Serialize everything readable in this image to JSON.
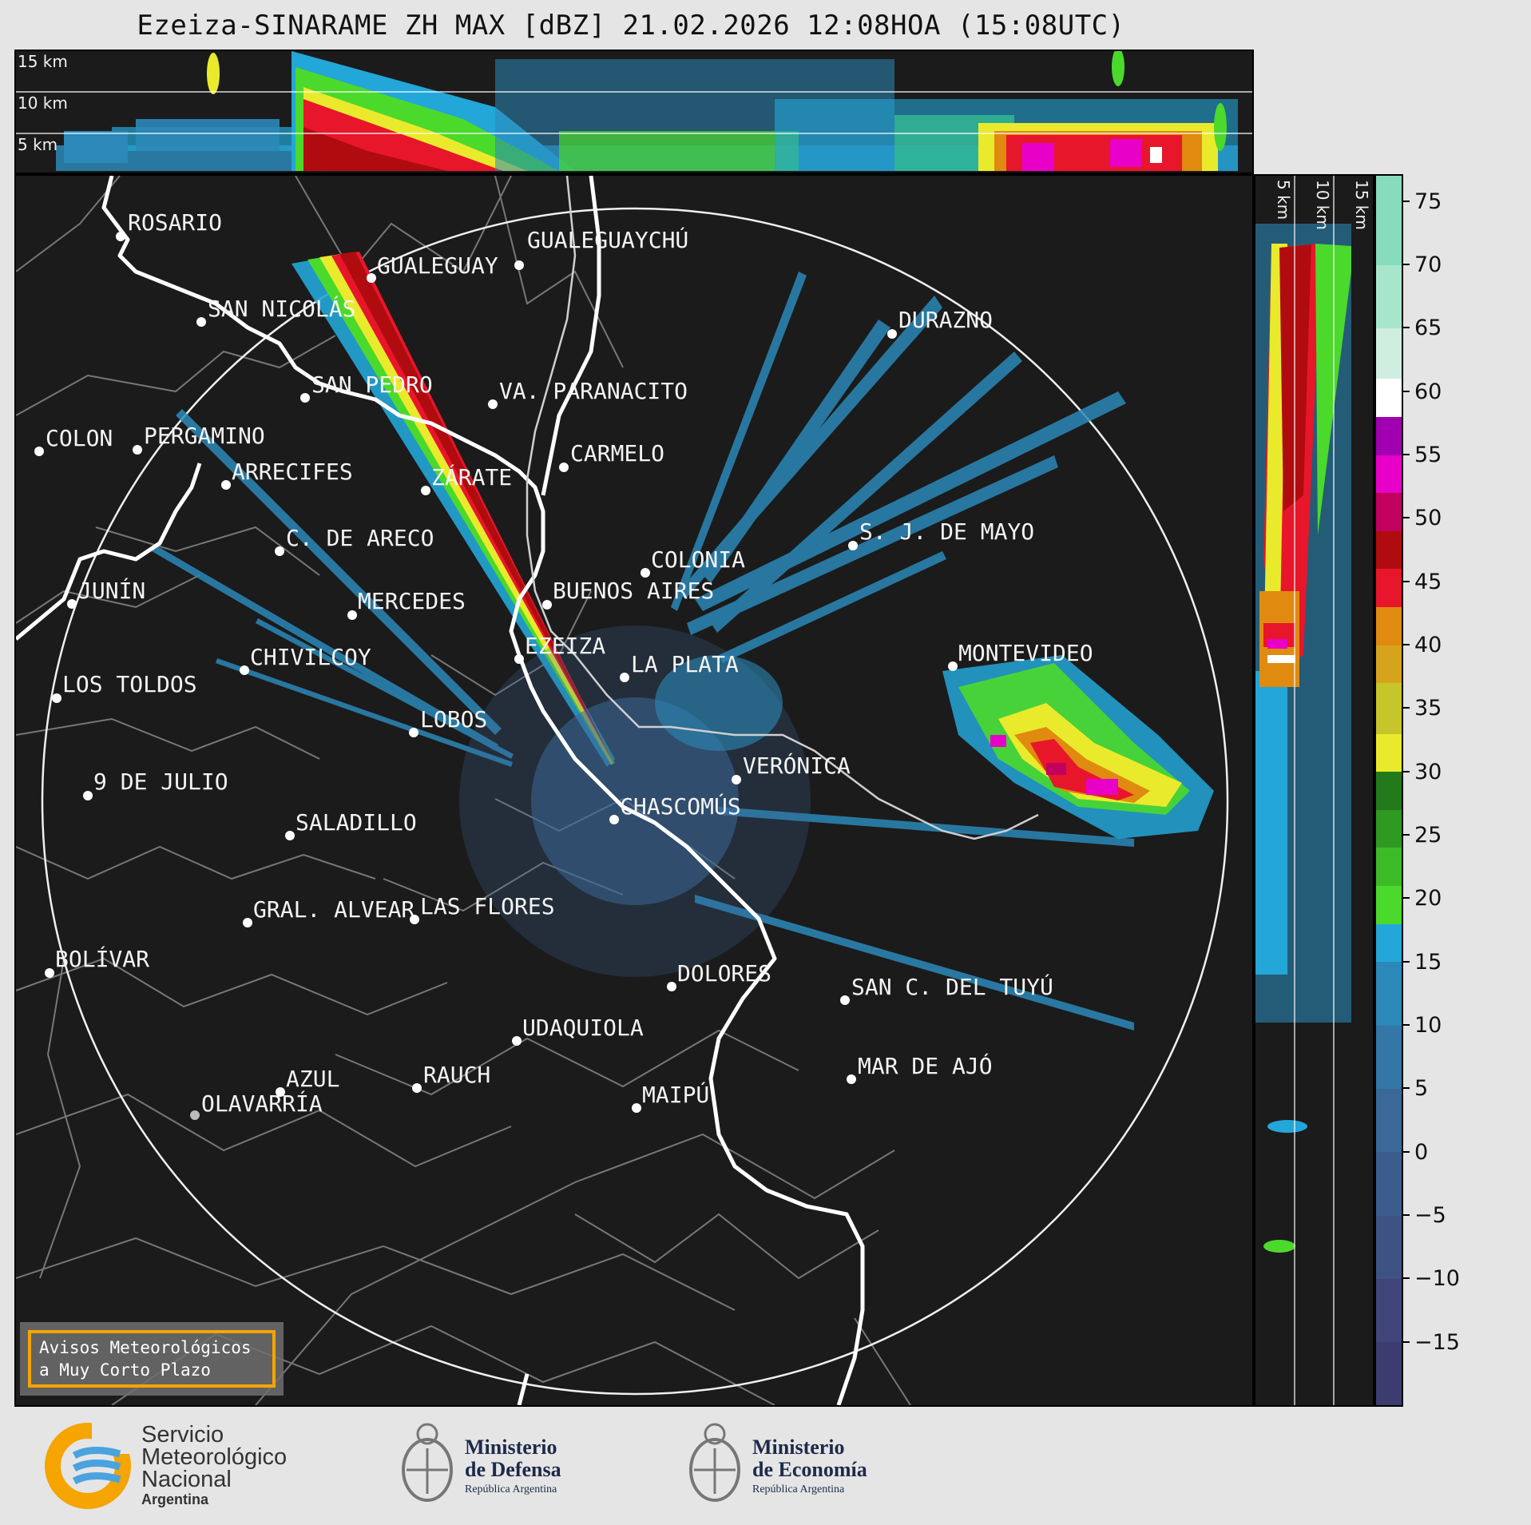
{
  "title": "Ezeiza-SINARAME ZH MAX [dBZ] 21.02.2026 12:08HOA (15:08UTC)",
  "top_panel": {
    "height_labels": [
      "15 km",
      "10 km",
      "5 km"
    ]
  },
  "side_panel": {
    "height_labels": [
      "5 km",
      "10 km",
      "15 km"
    ]
  },
  "colorbar": {
    "unit": "dBZ",
    "ticks": [
      75,
      70,
      65,
      60,
      55,
      50,
      45,
      40,
      35,
      30,
      25,
      20,
      15,
      10,
      5,
      0,
      -5,
      -10,
      -15
    ],
    "tick_labels": [
      "75",
      "70",
      "65",
      "60",
      "55",
      "50",
      "45",
      "40",
      "35",
      "30",
      "25",
      "20",
      "15",
      "10",
      "5",
      "0",
      "−5",
      "−10",
      "−15"
    ],
    "range": [
      -20,
      77
    ],
    "colors": [
      {
        "from": -20,
        "to": -15,
        "color": "#3c3c6e"
      },
      {
        "from": -15,
        "to": -10,
        "color": "#40467a"
      },
      {
        "from": -10,
        "to": -5,
        "color": "#3f5284"
      },
      {
        "from": -5,
        "to": 0,
        "color": "#3d5c8e"
      },
      {
        "from": 0,
        "to": 5,
        "color": "#3a6898"
      },
      {
        "from": 5,
        "to": 10,
        "color": "#3476a6"
      },
      {
        "from": 10,
        "to": 15,
        "color": "#2b88b8"
      },
      {
        "from": 15,
        "to": 18,
        "color": "#23a6d8"
      },
      {
        "from": 18,
        "to": 21,
        "color": "#4bd92b"
      },
      {
        "from": 21,
        "to": 24,
        "color": "#3dbb27"
      },
      {
        "from": 24,
        "to": 27,
        "color": "#2f9a22"
      },
      {
        "from": 27,
        "to": 30,
        "color": "#237a1a"
      },
      {
        "from": 30,
        "to": 33,
        "color": "#eaea2c"
      },
      {
        "from": 33,
        "to": 37,
        "color": "#c6c62a"
      },
      {
        "from": 37,
        "to": 40,
        "color": "#d6a41c"
      },
      {
        "from": 40,
        "to": 43,
        "color": "#e08a10"
      },
      {
        "from": 43,
        "to": 46,
        "color": "#e8162a"
      },
      {
        "from": 46,
        "to": 49,
        "color": "#b00c10"
      },
      {
        "from": 49,
        "to": 52,
        "color": "#c2005e"
      },
      {
        "from": 52,
        "to": 55,
        "color": "#e800c8"
      },
      {
        "from": 55,
        "to": 58,
        "color": "#a000b0"
      },
      {
        "from": 58,
        "to": 61,
        "color": "#ffffff"
      },
      {
        "from": 61,
        "to": 65,
        "color": "#cfeee0"
      },
      {
        "from": 65,
        "to": 70,
        "color": "#a8e6cc"
      },
      {
        "from": 70,
        "to": 77,
        "color": "#86dcbc"
      }
    ]
  },
  "map": {
    "cities": [
      {
        "name": "ROSARIO"
      },
      {
        "name": "GUALEGUAYCHÚ"
      },
      {
        "name": "GUALEGUAY"
      },
      {
        "name": "SAN NICOLÁS"
      },
      {
        "name": "DURAZNO"
      },
      {
        "name": "SAN PEDRO"
      },
      {
        "name": "VA. PARANACITO"
      },
      {
        "name": "COLON"
      },
      {
        "name": "PERGAMINO"
      },
      {
        "name": "CARMELO"
      },
      {
        "name": "ARRECIFES"
      },
      {
        "name": "ZÁRATE"
      },
      {
        "name": "S. J. DE MAYO"
      },
      {
        "name": "C. DE ARECO"
      },
      {
        "name": "COLONIA"
      },
      {
        "name": "JUNÍN"
      },
      {
        "name": "BUENOS AIRES"
      },
      {
        "name": "MERCEDES"
      },
      {
        "name": "EZEIZA"
      },
      {
        "name": "MONTEVIDEO"
      },
      {
        "name": "CHIVILCOY"
      },
      {
        "name": "LA PLATA"
      },
      {
        "name": "LOS TOLDOS"
      },
      {
        "name": "LOBOS"
      },
      {
        "name": "VERÓNICA"
      },
      {
        "name": "9 DE JULIO"
      },
      {
        "name": "CHASCOMÚS"
      },
      {
        "name": "SALADILLO"
      },
      {
        "name": "GRAL. ALVEAR"
      },
      {
        "name": "LAS FLORES"
      },
      {
        "name": "BOLÍVAR"
      },
      {
        "name": "DOLORES"
      },
      {
        "name": "SAN C. DEL TUYÚ"
      },
      {
        "name": "UDAQUIOLA"
      },
      {
        "name": "MAR DE AJÓ"
      },
      {
        "name": "AZUL"
      },
      {
        "name": "RAUCH"
      },
      {
        "name": "OLAVARRÍA"
      },
      {
        "name": "MAIPÚ"
      }
    ]
  },
  "avisos": {
    "line1": "Avisos Meteorológicos",
    "line2": "a Muy Corto Plazo"
  },
  "logos": {
    "smn": {
      "line1": "Servicio",
      "line2": "Meteorológico",
      "line3": "Nacional",
      "line4": "Argentina"
    },
    "defensa": {
      "line1": "Ministerio",
      "line2": "de Defensa",
      "line3": "República Argentina"
    },
    "economia": {
      "line1": "Ministerio",
      "line2": "de Economía",
      "line3": "República Argentina"
    }
  }
}
